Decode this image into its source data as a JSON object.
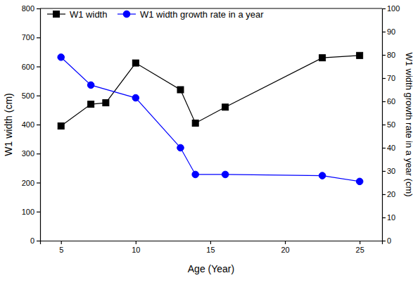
{
  "chart_data": {
    "type": "line",
    "x_label": "Age (Year)",
    "y_label": "W1 width (cm)",
    "y2_label": "W1 width growth rate in a year (cm)",
    "xlim": [
      3.6,
      26.5
    ],
    "xticks": [
      5,
      10,
      15,
      20,
      25
    ],
    "ylim": [
      0,
      800
    ],
    "yticks": [
      0,
      100,
      200,
      300,
      400,
      500,
      600,
      700,
      800
    ],
    "y2lim": [
      0,
      100
    ],
    "y2ticks": [
      0,
      10,
      20,
      30,
      40,
      50,
      60,
      70,
      80,
      90,
      100
    ],
    "legend": "upper left",
    "series": [
      {
        "name": "W1 width",
        "color": "#000000",
        "marker": "square",
        "x": [
          5,
          7,
          8,
          10,
          13,
          14,
          16,
          22.5,
          25
        ],
        "values": [
          395,
          470,
          475,
          612,
          520,
          405,
          460,
          630,
          638
        ]
      },
      {
        "name": "W1 width growth rate in a year",
        "color": "#0000ff",
        "marker": "circle",
        "axis": "y2",
        "x": [
          5,
          7,
          10,
          13,
          14,
          16,
          22.5,
          25
        ],
        "values": [
          79,
          67,
          61.5,
          40,
          28.5,
          28.5,
          28,
          25.5
        ]
      }
    ]
  }
}
